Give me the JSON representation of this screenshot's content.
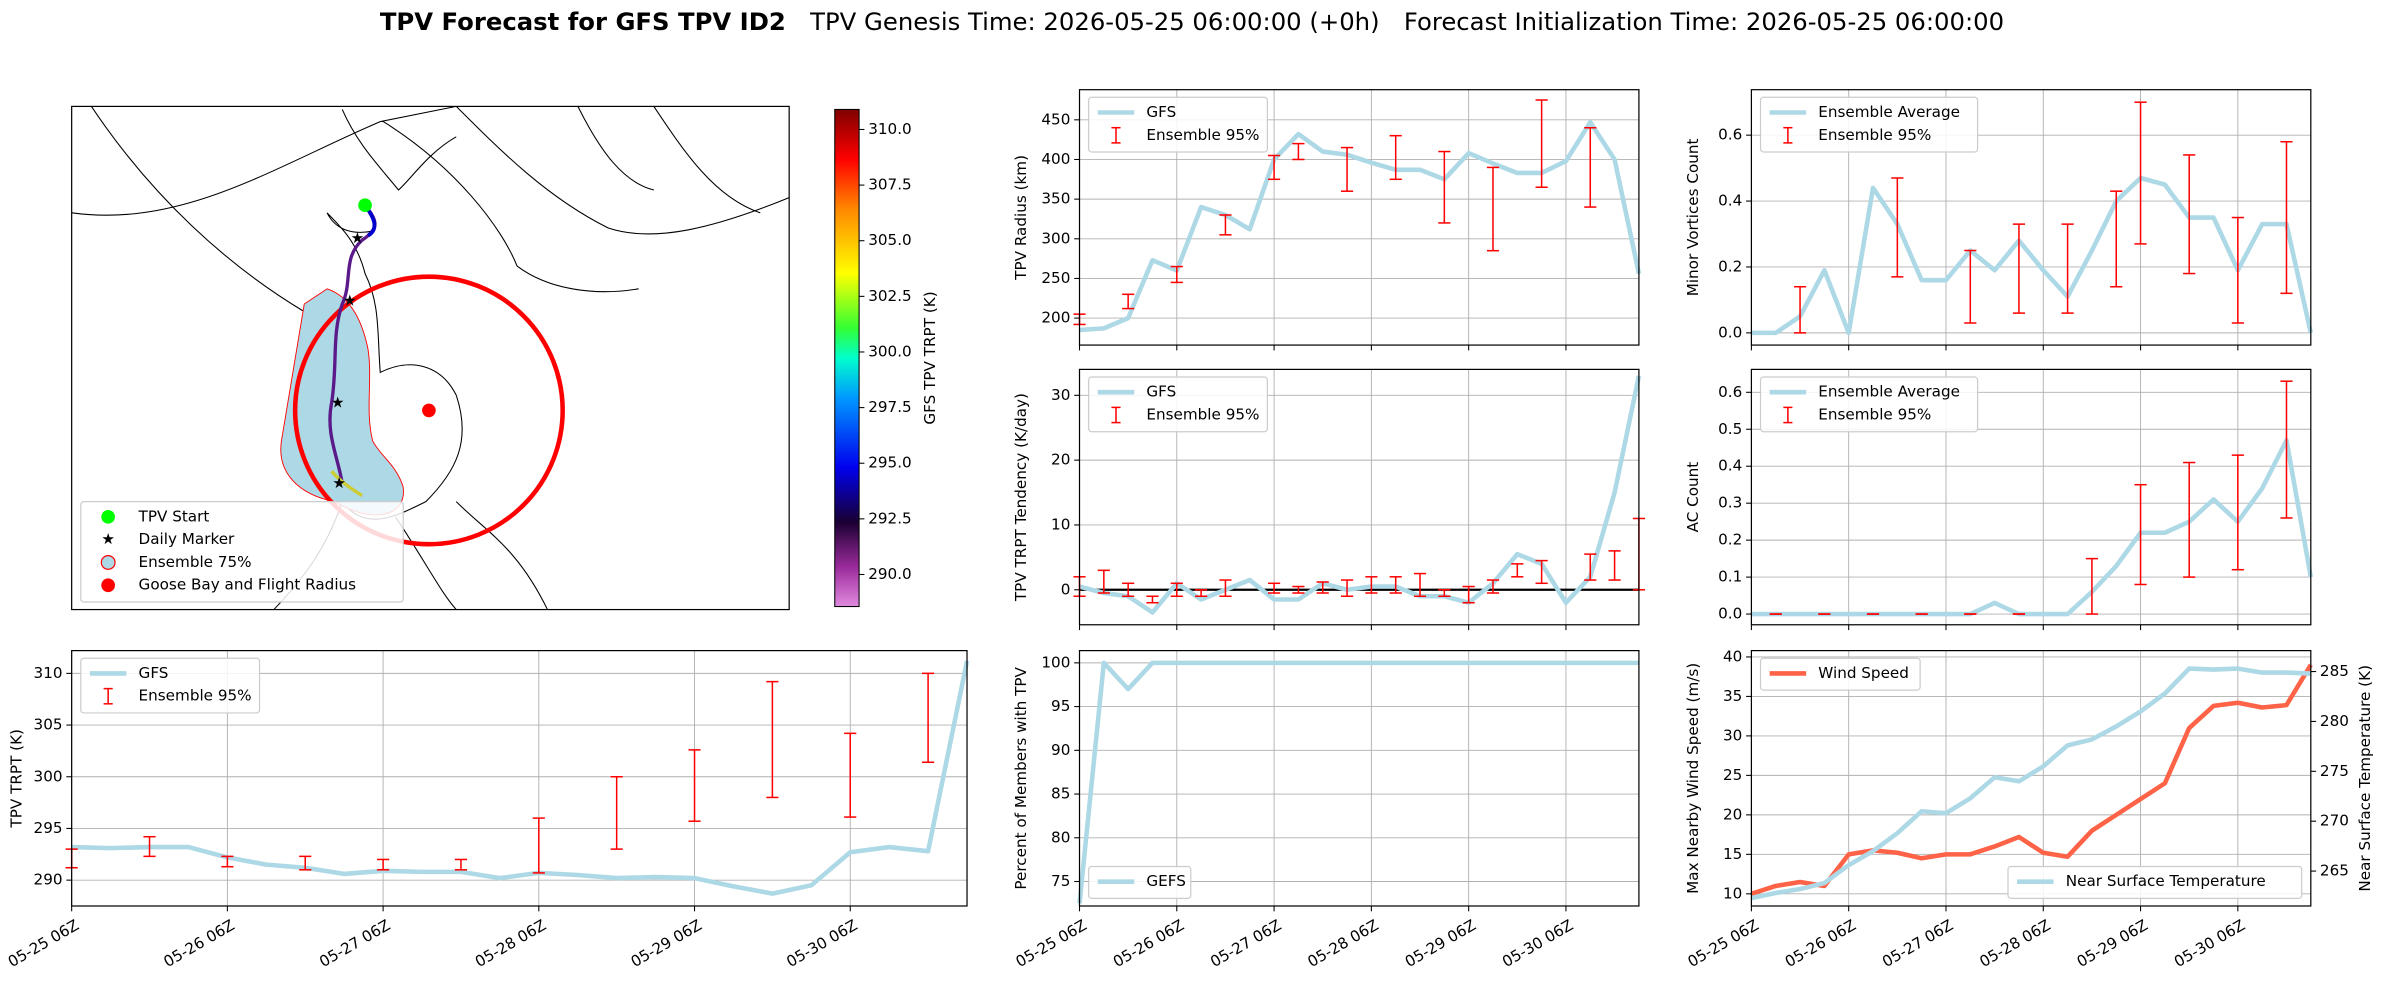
{
  "header": {
    "title": "TPV Forecast for GFS TPV ID2",
    "genesis": "TPV Genesis Time: 2026-05-25 06:00:00 (+0h)",
    "init": "Forecast Initialization Time: 2026-05-25 06:00:00"
  },
  "chart_data": [
    {
      "type": "map",
      "legend_entries": [
        "TPV Start",
        "Daily Marker",
        "Ensemble 75%",
        "Goose Bay and Flight Radius"
      ],
      "legend": "lower left",
      "colorbar_label": "GFS TPV TRPT (K)",
      "colorbar_lim": [
        288.56,
        310.9
      ],
      "colorbar_ticks": [
        {
          "value": 290,
          "label": "290.0"
        },
        {
          "value": 292.5,
          "label": "292.5"
        },
        {
          "value": 295,
          "label": "295.0"
        },
        {
          "value": 297.5,
          "label": "297.5"
        },
        {
          "value": 300,
          "label": "300.0"
        },
        {
          "value": 302.5,
          "label": "302.5"
        },
        {
          "value": 305,
          "label": "305.0"
        },
        {
          "value": 307.5,
          "label": "307.5"
        },
        {
          "value": 310,
          "label": "310.0"
        }
      ]
    },
    {
      "type": "line",
      "ylabel": "TPV Radius (km)",
      "ylim": [
        166,
        488
      ],
      "yticks": [
        200,
        250,
        300,
        350,
        400,
        450
      ],
      "grid": true,
      "legend": "upper left",
      "series": [
        {
          "name": "GFS",
          "color": "#add8e6",
          "values": [
            185,
            187,
            200,
            273,
            260,
            340,
            330,
            312,
            400,
            432,
            410,
            406,
            396,
            387,
            387,
            375,
            408,
            395,
            383,
            383,
            398,
            447,
            400,
            256
          ]
        },
        {
          "name": "Ensemble 95%",
          "color": "#ff0000",
          "low": [
            192,
            null,
            212,
            null,
            245,
            null,
            305,
            null,
            375,
            400,
            null,
            360,
            null,
            375,
            null,
            320,
            null,
            285,
            null,
            365,
            null,
            340,
            null,
            null
          ],
          "high": [
            205,
            null,
            230,
            null,
            265,
            null,
            330,
            null,
            405,
            420,
            null,
            415,
            null,
            430,
            null,
            410,
            null,
            390,
            null,
            475,
            null,
            440,
            null,
            null
          ]
        }
      ]
    },
    {
      "type": "line",
      "ylabel": "Minor Vortices Count",
      "ylim": [
        -0.037,
        0.738
      ],
      "yticks": [
        {
          "value": 0,
          "label": "0.0"
        },
        0.2,
        0.4,
        0.6
      ],
      "grid": true,
      "legend": "upper left",
      "series": [
        {
          "name": "Ensemble Average",
          "color": "#add8e6",
          "values": [
            0,
            0,
            0.05,
            0.19,
            0,
            0.44,
            0.33,
            0.16,
            0.16,
            0.25,
            0.19,
            0.28,
            0.19,
            0.11,
            0.25,
            0.4,
            0.47,
            0.45,
            0.35,
            0.35,
            0.19,
            0.33,
            0.33,
            0
          ]
        },
        {
          "name": "Ensemble 95%",
          "color": "#ff0000",
          "low": [
            null,
            null,
            0,
            null,
            null,
            null,
            0.17,
            null,
            null,
            0.03,
            null,
            0.06,
            null,
            0.06,
            null,
            0.14,
            0.27,
            null,
            0.18,
            null,
            0.03,
            null,
            0.12,
            null
          ],
          "high": [
            null,
            null,
            0.14,
            null,
            null,
            null,
            0.47,
            null,
            null,
            0.25,
            null,
            0.33,
            null,
            0.33,
            null,
            0.43,
            0.7,
            null,
            0.54,
            null,
            0.35,
            null,
            0.58,
            null
          ]
        }
      ]
    },
    {
      "type": "line",
      "ylabel": "TPV TRPT Tendency (K/day)",
      "ylim": [
        -5.4,
        34
      ],
      "yticks": [
        0,
        10,
        20,
        30
      ],
      "grid": true,
      "legend": "upper left",
      "hline": 0,
      "series": [
        {
          "name": "GFS",
          "color": "#add8e6",
          "values": [
            0.5,
            -0.5,
            -1,
            -3.5,
            1,
            -1.5,
            0,
            1.5,
            -1.5,
            -1.5,
            1,
            0,
            0.5,
            0.5,
            -1,
            -1,
            -2,
            1,
            5.5,
            4,
            -2,
            2,
            15,
            33
          ]
        },
        {
          "name": "Ensemble 95%",
          "color": "#ff0000",
          "low": [
            -1,
            -0.5,
            -1,
            -2,
            -1,
            -1,
            -1,
            null,
            -0.5,
            -0.5,
            -0.5,
            -1,
            -0.5,
            -0.5,
            -1,
            -1,
            -2,
            -0.5,
            2,
            1,
            null,
            1.5,
            1.5,
            0
          ],
          "high": [
            2,
            3,
            1,
            -1,
            1,
            0,
            1.5,
            null,
            1,
            0.5,
            1.2,
            1.5,
            2,
            2,
            2.5,
            0,
            0.5,
            1.5,
            4,
            4.5,
            null,
            5.5,
            6,
            11
          ]
        }
      ]
    },
    {
      "type": "line",
      "ylabel": "AC Count",
      "ylim": [
        -0.029,
        0.662
      ],
      "yticks": [
        {
          "value": 0,
          "label": "0.0"
        },
        0.1,
        0.2,
        0.3,
        0.4,
        0.5,
        0.6
      ],
      "grid": true,
      "legend": "upper left",
      "series": [
        {
          "name": "Ensemble Average",
          "color": "#add8e6",
          "values": [
            0,
            0,
            0,
            0,
            0,
            0,
            0,
            0,
            0,
            0,
            0.03,
            0,
            0,
            0,
            0.06,
            0.13,
            0.22,
            0.22,
            0.25,
            0.31,
            0.25,
            0.34,
            0.47,
            0.1
          ]
        },
        {
          "name": "Ensemble 95%",
          "color": "#ff0000",
          "low": [
            null,
            0,
            null,
            0,
            null,
            0,
            null,
            0,
            null,
            0,
            null,
            0,
            null,
            null,
            0,
            null,
            0.08,
            null,
            0.1,
            null,
            0.12,
            null,
            0.26,
            null
          ],
          "high": [
            null,
            0,
            null,
            0,
            null,
            0,
            null,
            0,
            null,
            0,
            null,
            0,
            null,
            null,
            0.15,
            null,
            0.35,
            null,
            0.41,
            null,
            0.43,
            null,
            0.63,
            null
          ]
        }
      ]
    },
    {
      "type": "line",
      "ylabel": "TPV TRPT (K)",
      "ylim": [
        287.5,
        312.2
      ],
      "yticks": [
        290,
        295,
        300,
        305,
        310
      ],
      "grid": true,
      "legend": "upper left",
      "categories": [
        "05-25 06Z",
        null,
        null,
        null,
        "05-26 06Z",
        null,
        null,
        null,
        "05-27 06Z",
        null,
        null,
        null,
        "05-28 06Z",
        null,
        null,
        null,
        "05-29 06Z",
        null,
        null,
        null,
        "05-30 06Z",
        null,
        null,
        null
      ],
      "series": [
        {
          "name": "GFS",
          "color": "#add8e6",
          "values": [
            293.2,
            293.1,
            293.2,
            293.2,
            292.2,
            291.5,
            291.2,
            290.6,
            290.9,
            290.8,
            290.8,
            290.2,
            290.7,
            290.5,
            290.2,
            290.3,
            290.2,
            289.4,
            288.7,
            289.5,
            292.7,
            293.2,
            292.8,
            311.2
          ]
        },
        {
          "name": "Ensemble 95%",
          "color": "#ff0000",
          "low": [
            291.2,
            null,
            292.3,
            null,
            291.3,
            null,
            291.0,
            null,
            291.0,
            null,
            291.0,
            null,
            290.7,
            null,
            293.0,
            null,
            295.7,
            null,
            298.0,
            null,
            296.1,
            null,
            301.4,
            null
          ],
          "high": [
            293.0,
            null,
            294.2,
            null,
            292.3,
            null,
            292.3,
            null,
            292.0,
            null,
            292.0,
            null,
            296.0,
            null,
            300.0,
            null,
            302.6,
            null,
            309.2,
            null,
            304.2,
            null,
            310.0,
            null
          ]
        }
      ]
    },
    {
      "type": "line",
      "ylabel": "Percent of Members with TPV",
      "ylim": [
        72.2,
        101.4
      ],
      "yticks": [
        75,
        80,
        85,
        90,
        95,
        100
      ],
      "grid": true,
      "legend": "lower left",
      "categories": [
        "05-25 06Z",
        null,
        null,
        null,
        "05-26 06Z",
        null,
        null,
        null,
        "05-27 06Z",
        null,
        null,
        null,
        "05-28 06Z",
        null,
        null,
        null,
        "05-29 06Z",
        null,
        null,
        null,
        "05-30 06Z",
        null,
        null,
        null
      ],
      "series": [
        {
          "name": "GEFS",
          "color": "#add8e6",
          "values": [
            72.5,
            100,
            97,
            100,
            100,
            100,
            100,
            100,
            100,
            100,
            100,
            100,
            100,
            100,
            100,
            100,
            100,
            100,
            100,
            100,
            100,
            100,
            100,
            100
          ]
        }
      ]
    },
    {
      "type": "line",
      "ylabel": "Max Nearby Wind Speed (m/s)",
      "y_color": "#ff6347",
      "ylim": [
        8.46,
        40.8
      ],
      "yticks": [
        10,
        15,
        20,
        25,
        30,
        35,
        40
      ],
      "y2label": "Near Surface Temperature (K)",
      "y2_color": "#4169e1",
      "y2lim": [
        261.5,
        287.1
      ],
      "y2ticks": [
        265,
        270,
        275,
        280,
        285
      ],
      "grid": true,
      "legend": "upper left",
      "legend2": "lower right",
      "categories": [
        "05-25 06Z",
        null,
        null,
        null,
        "05-26 06Z",
        null,
        null,
        null,
        "05-27 06Z",
        null,
        null,
        null,
        "05-28 06Z",
        null,
        null,
        null,
        "05-29 06Z",
        null,
        null,
        null,
        "05-30 06Z",
        null,
        null,
        null
      ],
      "series": [
        {
          "name": "Wind Speed",
          "color": "#ff6347",
          "values": [
            10,
            11,
            11.5,
            11,
            15,
            15.5,
            15.2,
            14.5,
            15,
            15,
            16,
            17.2,
            15.2,
            14.7,
            18,
            20,
            22,
            24,
            31,
            33.8,
            34.2,
            33.6,
            33.9,
            39
          ]
        },
        {
          "name": "Near Surface Temperature",
          "color": "#add8e6",
          "axis": "y2",
          "values": [
            262.3,
            262.8,
            263.2,
            263.8,
            265.6,
            267.0,
            268.8,
            271.0,
            270.8,
            272.3,
            274.4,
            274.0,
            275.5,
            277.6,
            278.2,
            279.5,
            281.0,
            282.8,
            285.3,
            285.2,
            285.3,
            284.9,
            284.9,
            284.8
          ]
        }
      ]
    }
  ]
}
